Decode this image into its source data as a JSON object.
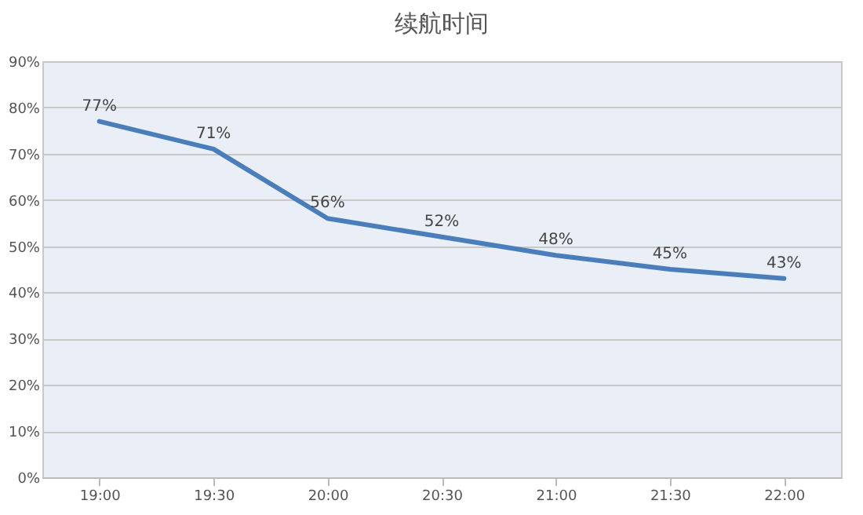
{
  "chart_data": {
    "type": "line",
    "title": "续航时间",
    "categories": [
      "19:00",
      "19:30",
      "20:00",
      "20:30",
      "21:00",
      "21:30",
      "22:00"
    ],
    "series": [
      {
        "color": "#4a7ebb",
        "values": [
          77,
          71,
          56,
          52,
          48,
          45,
          43
        ],
        "value_labels": [
          "77%",
          "71%",
          "56%",
          "52%",
          "48%",
          "45%",
          "43%"
        ]
      }
    ],
    "ylim": [
      0,
      90
    ],
    "yticks": [
      {
        "value": 0,
        "label": "0%"
      },
      {
        "value": 10,
        "label": "10%"
      },
      {
        "value": 20,
        "label": "20%"
      },
      {
        "value": 30,
        "label": "30%"
      },
      {
        "value": 40,
        "label": "40%"
      },
      {
        "value": 50,
        "label": "50%"
      },
      {
        "value": 60,
        "label": "60%"
      },
      {
        "value": 70,
        "label": "70%"
      },
      {
        "value": 80,
        "label": "80%"
      },
      {
        "value": 90,
        "label": "90%"
      }
    ],
    "grid": "y"
  }
}
